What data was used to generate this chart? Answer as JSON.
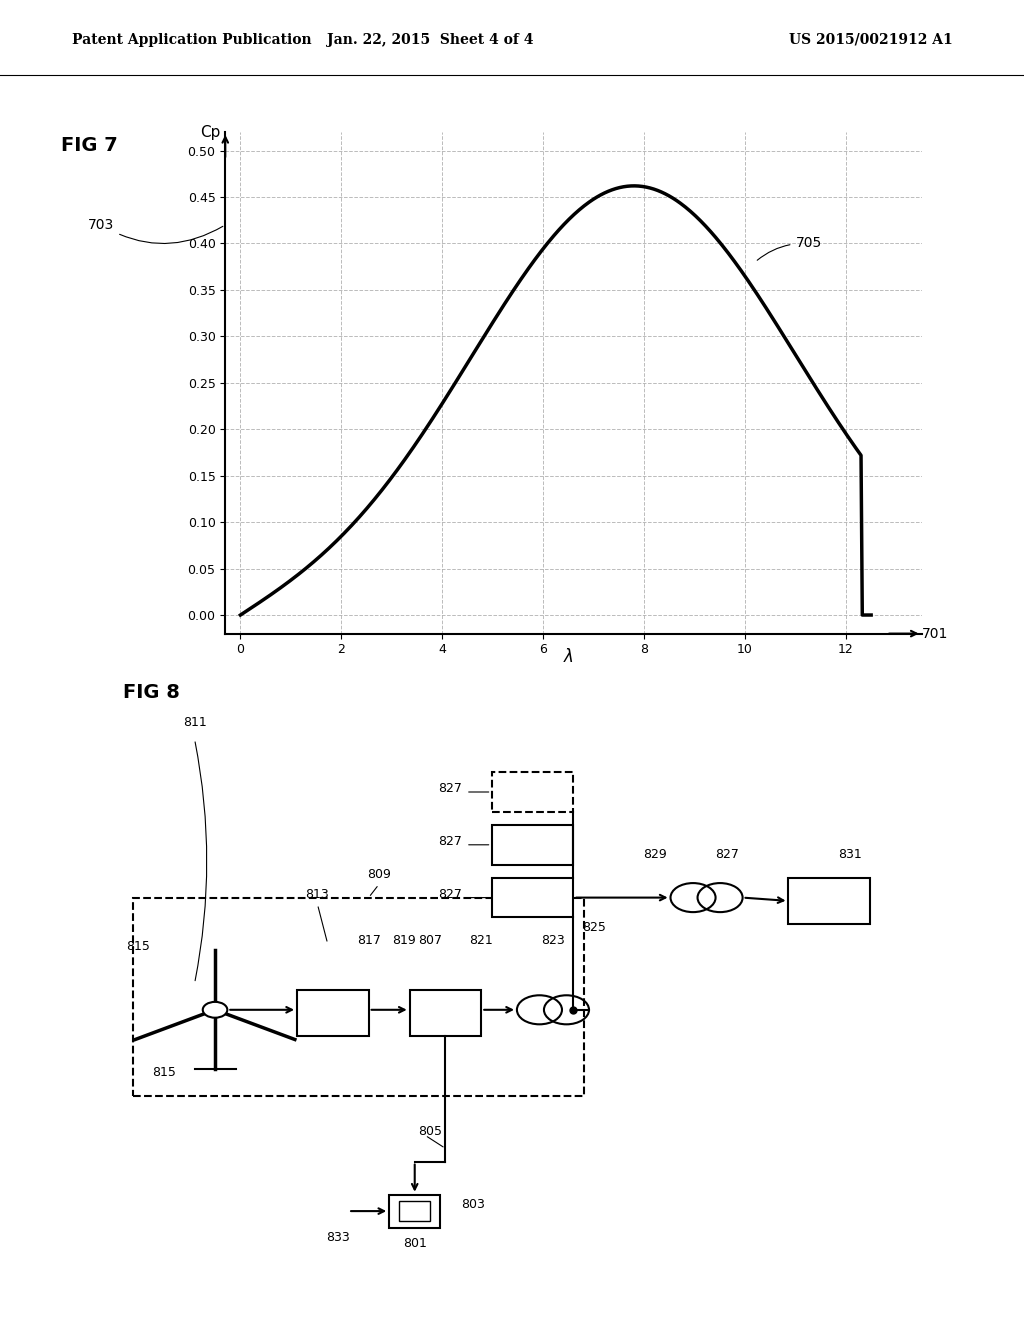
{
  "header_left": "Patent Application Publication",
  "header_center": "Jan. 22, 2015  Sheet 4 of 4",
  "header_right": "US 2015/0021912 A1",
  "fig7_title": "FIG 7",
  "fig7_xlabel": "λ",
  "fig7_ylabel": "Cp",
  "fig7_label_701": "701",
  "fig7_label_703": "703",
  "fig7_label_705": "705",
  "fig7_yticks": [
    0,
    0.05,
    0.1,
    0.15,
    0.2,
    0.25,
    0.3,
    0.35,
    0.4,
    0.45,
    0.5
  ],
  "fig7_xticks": [
    0,
    2,
    4,
    6,
    8,
    10,
    12
  ],
  "fig8_title": "FIG 8",
  "bg_color": "#ffffff",
  "line_color": "#000000",
  "grid_color": "#aaaaaa",
  "dashed_color": "#888888"
}
